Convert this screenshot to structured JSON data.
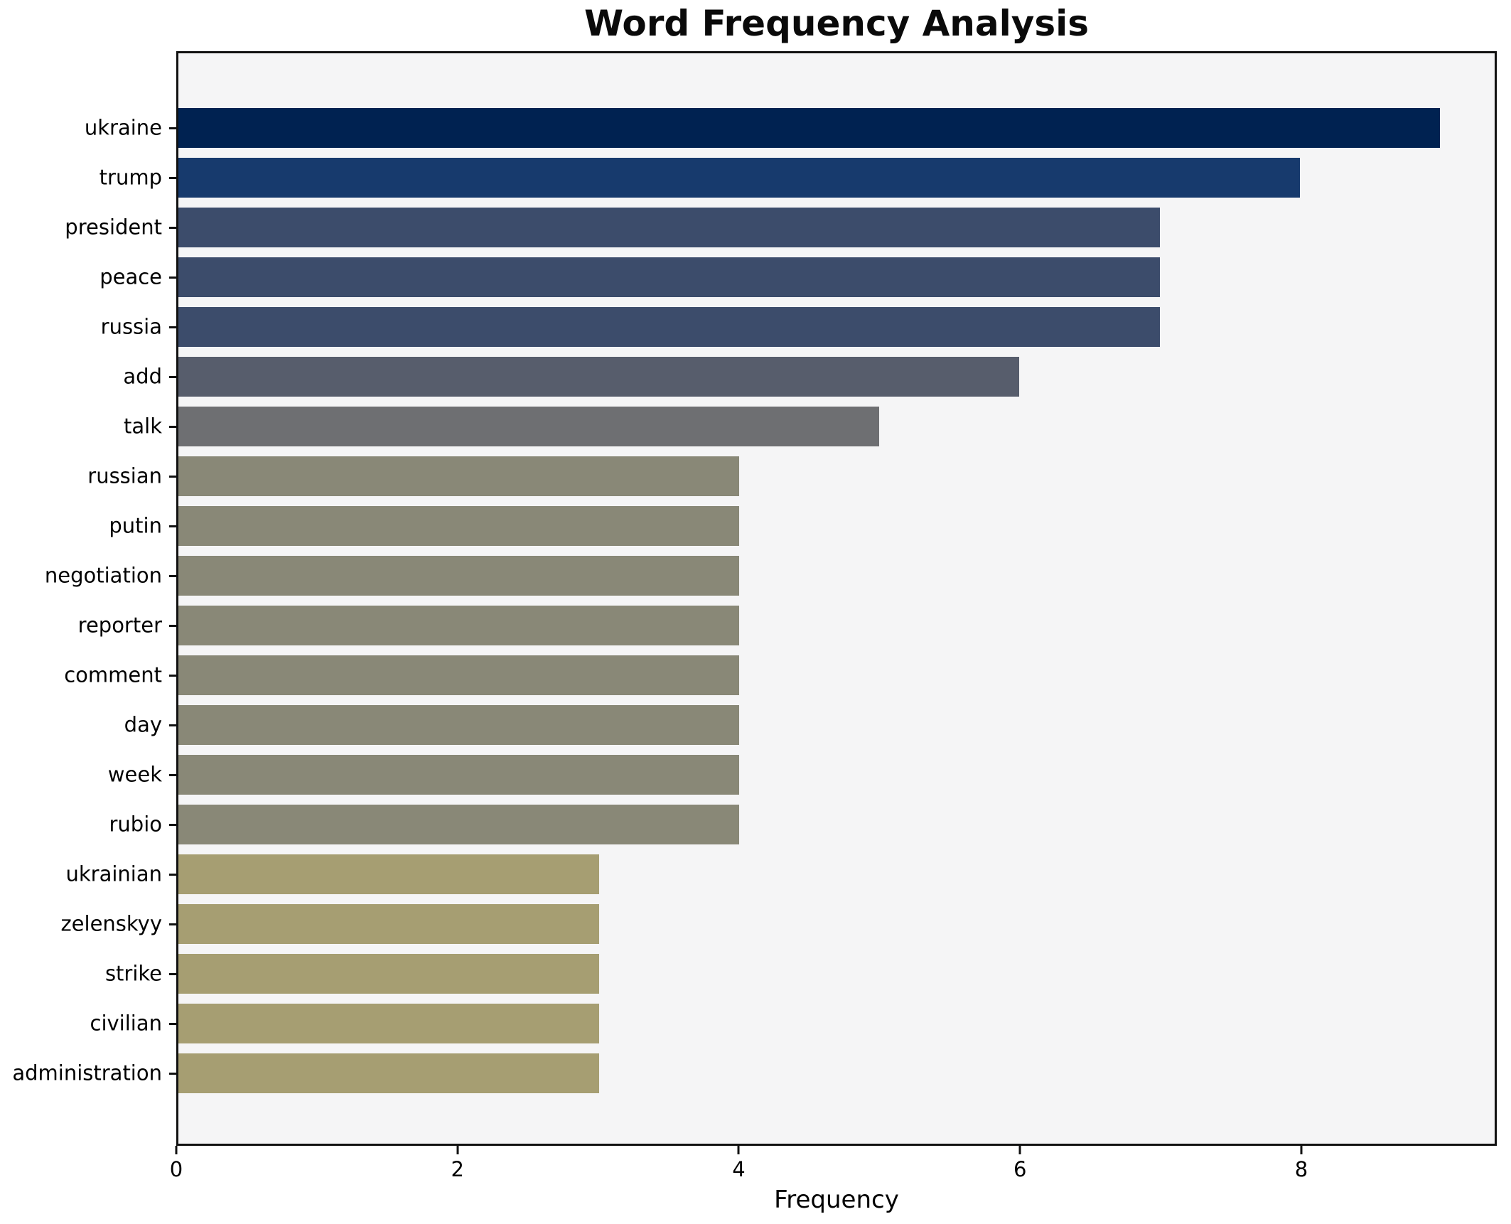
{
  "chart_data": {
    "type": "bar",
    "orientation": "horizontal",
    "title": "Word Frequency Analysis",
    "xlabel": "Frequency",
    "ylabel": "",
    "categories": [
      "ukraine",
      "trump",
      "president",
      "peace",
      "russia",
      "add",
      "talk",
      "russian",
      "putin",
      "negotiation",
      "reporter",
      "comment",
      "day",
      "week",
      "rubio",
      "ukrainian",
      "zelenskyy",
      "strike",
      "civilian",
      "administration"
    ],
    "values": [
      9,
      8,
      7,
      7,
      7,
      6,
      5,
      4,
      4,
      4,
      4,
      4,
      4,
      4,
      4,
      3,
      3,
      3,
      3,
      3
    ],
    "bar_colors": [
      "#002251",
      "#173a6d",
      "#3c4c6b",
      "#3c4c6b",
      "#3c4c6b",
      "#575d6c",
      "#6e6f72",
      "#898877",
      "#898877",
      "#898877",
      "#898877",
      "#898877",
      "#898877",
      "#898877",
      "#898877",
      "#a69e72",
      "#a69e72",
      "#a69e72",
      "#a69e72",
      "#a69e72"
    ],
    "x_ticks": [
      0,
      2,
      4,
      6,
      8
    ],
    "xlim": [
      0,
      9.39
    ],
    "grid": false,
    "legend": null,
    "plot_background": "#f5f5f6",
    "figure_background": "#ffffff",
    "spine_color": "#111111",
    "text_color": "#000000"
  }
}
